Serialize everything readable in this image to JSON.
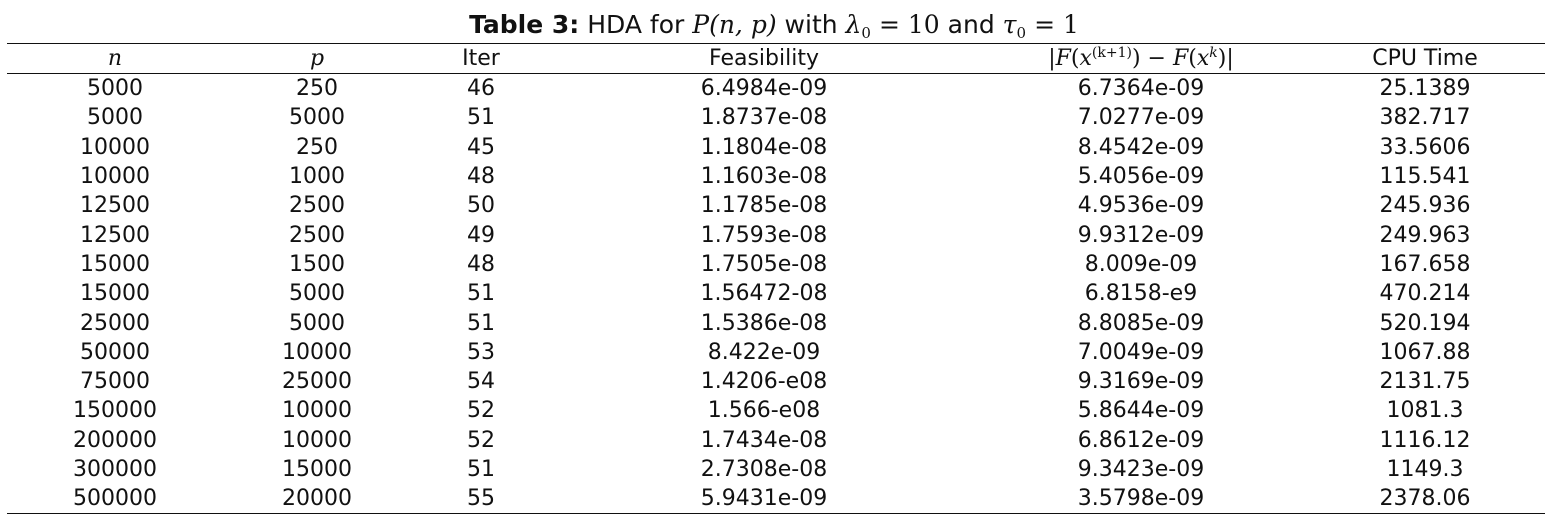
{
  "caption": {
    "label": "Table 3:",
    "text": "HDA for",
    "func": "P",
    "args": "(n, p)",
    "with": "with",
    "lambda": "λ",
    "lambda_sub": "0",
    "lambda_val": "10",
    "and": "and",
    "tau": "τ",
    "tau_sub": "0",
    "tau_val": "1",
    "eq": "="
  },
  "table": {
    "headers": {
      "n": "n",
      "p": "p",
      "iter": "Iter",
      "feasibility": "Feasibility",
      "diff_open": "|",
      "diff_F1": "F",
      "diff_x1": "x",
      "diff_sup1": "(k+1)",
      "diff_minus": "−",
      "diff_F2": "F",
      "diff_x2": "x",
      "diff_sup2": "k",
      "diff_close": "|",
      "cpu": "CPU Time"
    },
    "rows": [
      {
        "n": "5000",
        "p": "250",
        "iter": "46",
        "feasibility": "6.4984e-09",
        "diff": "6.7364e-09",
        "cpu": "25.1389"
      },
      {
        "n": "5000",
        "p": "5000",
        "iter": "51",
        "feasibility": "1.8737e-08",
        "diff": "7.0277e-09",
        "cpu": "382.717"
      },
      {
        "n": "10000",
        "p": "250",
        "iter": "45",
        "feasibility": "1.1804e-08",
        "diff": "8.4542e-09",
        "cpu": "33.5606"
      },
      {
        "n": "10000",
        "p": "1000",
        "iter": "48",
        "feasibility": "1.1603e-08",
        "diff": "5.4056e-09",
        "cpu": "115.541"
      },
      {
        "n": "12500",
        "p": "2500",
        "iter": "50",
        "feasibility": "1.1785e-08",
        "diff": "4.9536e-09",
        "cpu": "245.936"
      },
      {
        "n": "12500",
        "p": "2500",
        "iter": "49",
        "feasibility": "1.7593e-08",
        "diff": "9.9312e-09",
        "cpu": "249.963"
      },
      {
        "n": "15000",
        "p": "1500",
        "iter": "48",
        "feasibility": "1.7505e-08",
        "diff": "8.009e-09",
        "cpu": "167.658"
      },
      {
        "n": "15000",
        "p": "5000",
        "iter": "51",
        "feasibility": "1.56472-08",
        "diff": "6.8158-e9",
        "cpu": "470.214"
      },
      {
        "n": "25000",
        "p": "5000",
        "iter": "51",
        "feasibility": "1.5386e-08",
        "diff": "8.8085e-09",
        "cpu": "520.194"
      },
      {
        "n": "50000",
        "p": "10000",
        "iter": "53",
        "feasibility": "8.422e-09",
        "diff": "7.0049e-09",
        "cpu": "1067.88"
      },
      {
        "n": "75000",
        "p": "25000",
        "iter": "54",
        "feasibility": "1.4206-e08",
        "diff": "9.3169e-09",
        "cpu": "2131.75"
      },
      {
        "n": "150000",
        "p": "10000",
        "iter": "52",
        "feasibility": "1.566-e08",
        "diff": "5.8644e-09",
        "cpu": "1081.3"
      },
      {
        "n": "200000",
        "p": "10000",
        "iter": "52",
        "feasibility": "1.7434e-08",
        "diff": "6.8612e-09",
        "cpu": "1116.12"
      },
      {
        "n": "300000",
        "p": "15000",
        "iter": "51",
        "feasibility": "2.7308e-08",
        "diff": "9.3423e-09",
        "cpu": "1149.3"
      },
      {
        "n": "500000",
        "p": "20000",
        "iter": "55",
        "feasibility": "5.9431e-09",
        "diff": "3.5798e-09",
        "cpu": "2378.06"
      }
    ]
  }
}
